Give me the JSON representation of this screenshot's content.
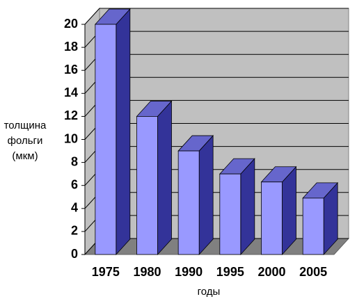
{
  "chart_data": {
    "type": "bar3d",
    "y_label_lines": [
      "толщина",
      "фольги",
      "(мкм)"
    ],
    "x_label": "годы",
    "categories": [
      "1975",
      "1980",
      "1990",
      "1995",
      "2000",
      "2005"
    ],
    "values": [
      20,
      12,
      9,
      7,
      6.3,
      4.9
    ],
    "colors": {
      "front": "#9999ff",
      "side": "#333399",
      "top": "#6666cc",
      "wall": "#c0c0c0",
      "floor": "#808080"
    },
    "ylim": [
      0,
      20
    ],
    "yticks": [
      0,
      2,
      4,
      6,
      8,
      10,
      12,
      14,
      16,
      18,
      20
    ],
    "grid": true
  }
}
